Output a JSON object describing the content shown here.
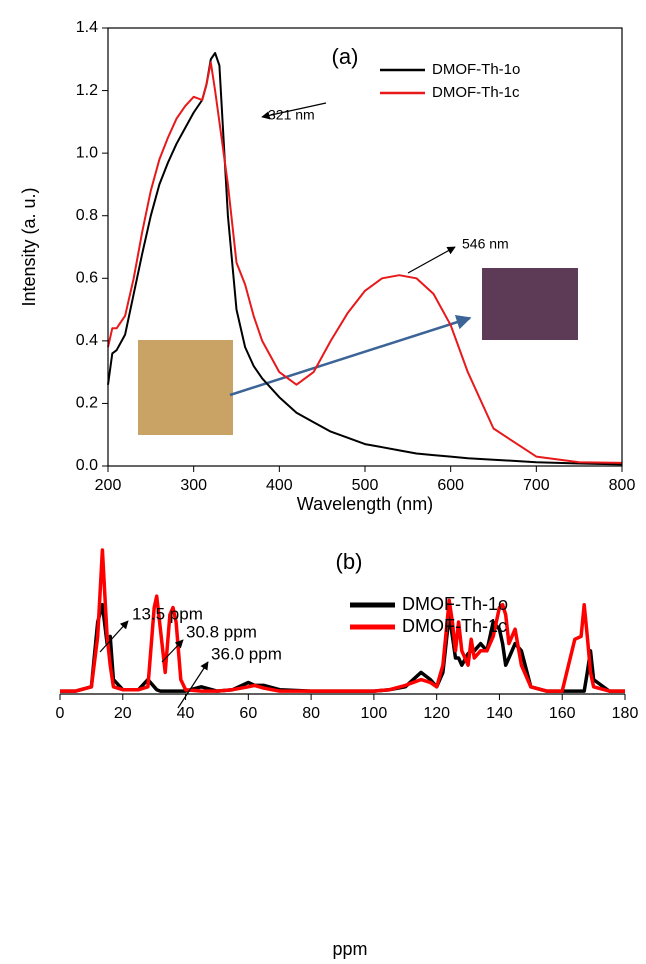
{
  "chart_data": [
    {
      "type": "line",
      "title": "(a)",
      "xlabel": "Wavelength (nm)",
      "ylabel": "Intensity (a. u.)",
      "x": [
        200,
        205,
        210,
        220,
        230,
        240,
        250,
        260,
        270,
        280,
        290,
        300,
        310,
        315,
        320,
        325,
        330,
        340,
        350,
        360,
        370,
        380,
        400,
        420,
        440,
        460,
        480,
        500,
        520,
        540,
        560,
        580,
        600,
        620,
        650,
        700,
        750,
        800
      ],
      "series": [
        {
          "name": "DMOF-Th-1o",
          "color": "#000000",
          "values": [
            0.26,
            0.36,
            0.37,
            0.42,
            0.55,
            0.68,
            0.8,
            0.9,
            0.97,
            1.03,
            1.08,
            1.13,
            1.17,
            1.22,
            1.3,
            1.32,
            1.28,
            0.8,
            0.5,
            0.38,
            0.32,
            0.28,
            0.22,
            0.17,
            0.14,
            0.11,
            0.09,
            0.07,
            0.06,
            0.05,
            0.04,
            0.035,
            0.03,
            0.025,
            0.02,
            0.012,
            0.008,
            0.005
          ]
        },
        {
          "name": "DMOF-Th-1c",
          "color": "#e8191b",
          "values": [
            0.38,
            0.44,
            0.44,
            0.48,
            0.6,
            0.75,
            0.88,
            0.98,
            1.05,
            1.11,
            1.15,
            1.18,
            1.17,
            1.22,
            1.29,
            1.2,
            1.1,
            0.9,
            0.65,
            0.58,
            0.48,
            0.4,
            0.3,
            0.26,
            0.3,
            0.4,
            0.49,
            0.56,
            0.6,
            0.61,
            0.6,
            0.55,
            0.45,
            0.3,
            0.12,
            0.03,
            0.012,
            0.01
          ]
        }
      ],
      "annotations": [
        "321 nm",
        "546 nm"
      ],
      "xlim": [
        200,
        800
      ],
      "xticks": [
        200,
        300,
        400,
        500,
        600,
        700,
        800
      ],
      "ylim": [
        0,
        1.4
      ],
      "yticks": [
        {
          "value": 0,
          "label": "0.0"
        },
        0.2,
        0.4,
        0.6,
        0.8,
        {
          "value": 1,
          "label": "1.0"
        },
        1.2,
        1.4
      ],
      "legend": "top-right"
    },
    {
      "type": "line",
      "title": "(b)",
      "xlabel": "ppm",
      "x": [
        0,
        5,
        10,
        12,
        13.5,
        15,
        16,
        17,
        20,
        25,
        28,
        30,
        30.8,
        32,
        33.5,
        35,
        36,
        37,
        38.5,
        40,
        45,
        50,
        55,
        60,
        62,
        65,
        70,
        80,
        90,
        100,
        105,
        110,
        115,
        118,
        120,
        122,
        124,
        125,
        126,
        127,
        128,
        130,
        131,
        132,
        134,
        136,
        138,
        140,
        141,
        142,
        143,
        145,
        147,
        150,
        155,
        160,
        162,
        164,
        166,
        167,
        168,
        169,
        170,
        175,
        180
      ],
      "series": [
        {
          "name": "DMOF-Th-1o",
          "color": "#000000",
          "values": [
            0.02,
            0.02,
            0.05,
            0.5,
            0.62,
            0.35,
            0.4,
            0.1,
            0.03,
            0.03,
            0.1,
            0.05,
            0.03,
            0.02,
            0.02,
            0.02,
            0.02,
            0.02,
            0.02,
            0.02,
            0.05,
            0.02,
            0.03,
            0.08,
            0.06,
            0.06,
            0.03,
            0.02,
            0.02,
            0.02,
            0.03,
            0.05,
            0.15,
            0.1,
            0.05,
            0.15,
            0.55,
            0.4,
            0.25,
            0.25,
            0.2,
            0.28,
            0.3,
            0.3,
            0.35,
            0.3,
            0.5,
            0.45,
            0.35,
            0.2,
            0.25,
            0.35,
            0.3,
            0.05,
            0.02,
            0.02,
            0.02,
            0.02,
            0.02,
            0.02,
            0.15,
            0.3,
            0.1,
            0.02,
            0.02
          ]
        },
        {
          "name": "DMOF-Th-1c",
          "color": "#ff0000",
          "values": [
            0.02,
            0.02,
            0.05,
            0.4,
            1.0,
            0.4,
            0.2,
            0.05,
            0.03,
            0.03,
            0.05,
            0.6,
            0.68,
            0.45,
            0.15,
            0.55,
            0.6,
            0.5,
            0.1,
            0.03,
            0.02,
            0.02,
            0.03,
            0.05,
            0.06,
            0.04,
            0.02,
            0.02,
            0.02,
            0.02,
            0.03,
            0.06,
            0.1,
            0.08,
            0.05,
            0.2,
            0.65,
            0.5,
            0.3,
            0.5,
            0.3,
            0.2,
            0.38,
            0.25,
            0.3,
            0.3,
            0.4,
            0.6,
            0.62,
            0.55,
            0.35,
            0.45,
            0.2,
            0.05,
            0.02,
            0.02,
            0.2,
            0.38,
            0.4,
            0.62,
            0.4,
            0.15,
            0.05,
            0.02,
            0.02
          ]
        }
      ],
      "annotations": [
        "13.5 ppm",
        "30.8 ppm",
        "36.0 ppm"
      ],
      "xlim": [
        0,
        180
      ],
      "xticks": [
        0,
        20,
        40,
        60,
        80,
        100,
        120,
        140,
        160,
        180
      ],
      "ylim": [
        0,
        1
      ],
      "legend": "top-right"
    }
  ]
}
